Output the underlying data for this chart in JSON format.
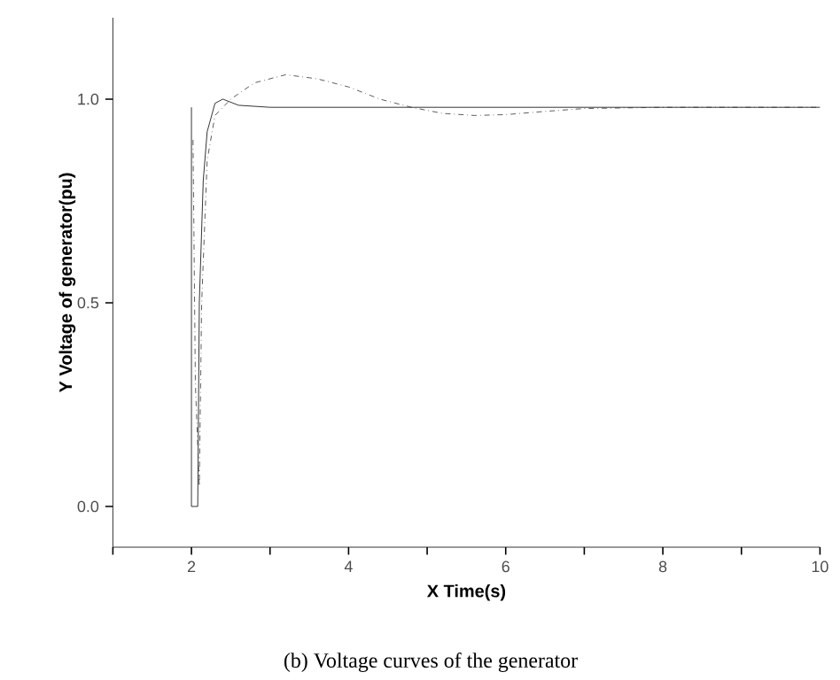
{
  "chart_data": {
    "type": "line",
    "xlabel": "X Time(s)",
    "ylabel": "Y Voltage of generator(pu)",
    "annotations": [
      "(b) Voltage curves of the generator"
    ],
    "xlim": [
      1,
      10
    ],
    "ylim": [
      -0.1,
      1.2
    ],
    "xticks": [
      {
        "value": 1,
        "label": null
      },
      2,
      {
        "value": 3,
        "label": null
      },
      4,
      {
        "value": 5,
        "label": null
      },
      6,
      {
        "value": 7,
        "label": null
      },
      8,
      {
        "value": 9,
        "label": null
      },
      10
    ],
    "yticks": [
      {
        "value": 0,
        "label": "0.0"
      },
      0.5,
      {
        "value": 1,
        "label": "1.0"
      }
    ],
    "grid": false,
    "marker": "none",
    "series": [
      {
        "color": "#000000",
        "line_style": "solid",
        "x": [
          2.0,
          2.0,
          2.08,
          2.1,
          2.15,
          2.2,
          2.3,
          2.4,
          2.6,
          3.0,
          10.0
        ],
        "values": [
          0.98,
          0.0,
          0.0,
          0.5,
          0.8,
          0.92,
          0.99,
          1.0,
          0.985,
          0.98,
          0.98
        ]
      },
      {
        "color": "#333333",
        "line_style": "dashed",
        "x": [
          2.02,
          2.05,
          2.1,
          2.13,
          2.2,
          2.3,
          2.5,
          2.8,
          3.2,
          3.6,
          4.0,
          4.4,
          4.8,
          5.2,
          5.6,
          6.0,
          6.5,
          7.0,
          8.0,
          10.0
        ],
        "values": [
          0.9,
          0.3,
          0.05,
          0.5,
          0.85,
          0.96,
          1.0,
          1.04,
          1.06,
          1.05,
          1.03,
          1.0,
          0.98,
          0.965,
          0.96,
          0.962,
          0.97,
          0.977,
          0.98,
          0.98
        ]
      }
    ]
  }
}
